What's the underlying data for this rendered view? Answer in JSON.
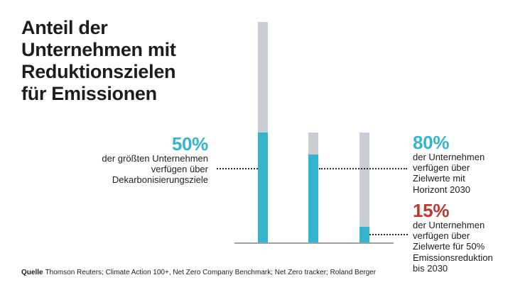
{
  "title": {
    "lines": [
      "Anteil der",
      "Unternehmen mit",
      "Reduktionszielen",
      "für Emissionen"
    ]
  },
  "callouts": {
    "left": {
      "value": "50%",
      "lines": [
        "der größten Unternehmen",
        "verfügen über",
        "Dekarbonisierungsziele"
      ],
      "color": "#35b5cd"
    },
    "right_top": {
      "value": "80%",
      "lines": [
        "der Unternehmen",
        "verfügen über",
        "Zielwerte mit",
        "Horizont 2030"
      ],
      "color": "#35b5cd"
    },
    "right_bottom": {
      "value": "15%",
      "lines": [
        "der Unternehmen",
        "verfügen über",
        "Zielwerte für 50%",
        "Emissionsreduktion",
        "bis 2030"
      ],
      "color": "#c0392f"
    }
  },
  "footer": {
    "label": "Quelle",
    "text": "Thomson Reuters; Climate Action 100+, Net Zero Company Benchmark; Net Zero tracker; Roland Berger"
  },
  "colors": {
    "bar_filled": "#35b5cd",
    "bar_remainder": "#c9cdd4",
    "accent_red": "#c0392f",
    "baseline": "#9aa0a5",
    "text": "#1d1d1b"
  },
  "chart_data": {
    "type": "bar",
    "title": "Anteil der Unternehmen mit Reduktionszielen für Emissionen",
    "unit": "%",
    "legend_position": "none",
    "grid": false,
    "ylim": [
      0,
      100
    ],
    "bars": [
      {
        "label": "der größten Unternehmen verfügen über Dekarbonisierungsziele",
        "value": 50,
        "total": 100,
        "relative_scale": 2
      },
      {
        "label": "der Unternehmen verfügen über Zielwerte mit Horizont 2030",
        "value": 80,
        "total": 100,
        "relative_scale": 1
      },
      {
        "label": "der Unternehmen verfügen über Zielwerte für 50% Emissionsreduktion bis 2030",
        "value": 15,
        "total": 100,
        "relative_scale": 1
      }
    ],
    "source": "Thomson Reuters; Climate Action 100+, Net Zero Company Benchmark; Net Zero tracker; Roland Berger"
  }
}
